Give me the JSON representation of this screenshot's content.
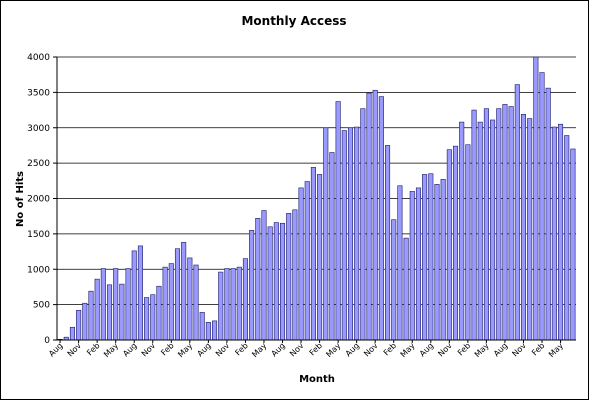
{
  "chart_data": {
    "type": "bar",
    "title": "Monthly Access",
    "xlabel": "Month",
    "ylabel": "No of Hits",
    "ylim": [
      0,
      4000
    ],
    "yticks": [
      0,
      500,
      1000,
      1500,
      2000,
      2500,
      3000,
      3500,
      4000
    ],
    "grid": true,
    "bar_color": "#9999ff",
    "xtick_labels": [
      "Aug",
      "Nov",
      "Feb",
      "May",
      "Aug",
      "Nov",
      "Feb",
      "May",
      "Aug",
      "Nov",
      "Feb",
      "May",
      "Aug",
      "Nov",
      "Feb",
      "May",
      "Aug",
      "Nov",
      "Feb",
      "May",
      "Aug",
      "Nov",
      "Feb",
      "May",
      "Aug",
      "Nov",
      "Feb",
      "May"
    ],
    "values": [
      10,
      40,
      180,
      420,
      520,
      690,
      860,
      1010,
      780,
      1010,
      790,
      1010,
      1260,
      1330,
      600,
      640,
      760,
      1030,
      1080,
      1290,
      1380,
      1160,
      1060,
      390,
      250,
      270,
      960,
      1010,
      1010,
      1030,
      1150,
      1550,
      1720,
      1830,
      1600,
      1660,
      1650,
      1790,
      1840,
      2150,
      2240,
      2440,
      2340,
      3000,
      2650,
      3370,
      2960,
      3000,
      3010,
      3270,
      3490,
      3530,
      3440,
      2750,
      1700,
      2180,
      1440,
      2100,
      2150,
      2340,
      2350,
      2200,
      2270,
      2690,
      2740,
      3080,
      2760,
      3250,
      3080,
      3270,
      3110,
      3270,
      3330,
      3300,
      3610,
      3190,
      3130,
      4000,
      3780,
      3560,
      3010,
      3050,
      2890,
      2700
    ]
  }
}
